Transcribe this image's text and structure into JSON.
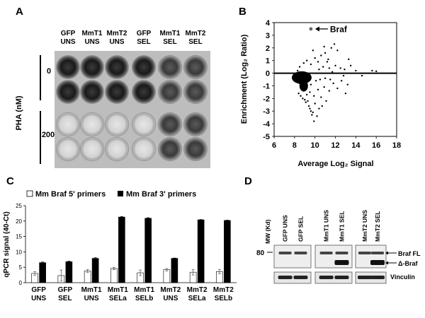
{
  "panels": {
    "A": {
      "letter": "A",
      "columns": [
        {
          "line1": "GFP",
          "line2": "UNS"
        },
        {
          "line1": "MmT1",
          "line2": "UNS"
        },
        {
          "line1": "MmT2",
          "line2": "UNS"
        },
        {
          "line1": "GFP",
          "line2": "SEL"
        },
        {
          "line1": "MmT1",
          "line2": "SEL"
        },
        {
          "line1": "MmT2",
          "line2": "SEL"
        }
      ],
      "row_axis_label": "PHA (nM)",
      "row_groups": [
        "0",
        "200"
      ]
    },
    "B": {
      "letter": "B",
      "annotation": "Braf"
    },
    "C": {
      "letter": "C",
      "legend": [
        "Mm Braf 5' primers",
        "Mm Braf 3' primers"
      ]
    },
    "D": {
      "letter": "D",
      "mw_label": "MW (Kd)",
      "mw_marker": "80",
      "lane_groups": [
        [
          "GFP UNS",
          "GFP SEL"
        ],
        [
          "MmT1 UNS",
          "MmT1 SEL"
        ],
        [
          "MmT2 UNS",
          "MmT2 SEL"
        ]
      ],
      "band_labels": [
        "Braf FL",
        "Δ-Braf"
      ],
      "loading_label": "Vinculin"
    }
  },
  "chart_data": [
    {
      "type": "scatter",
      "xlabel": "Average Log₂ Signal",
      "ylabel": "Enrichment (Log₂ Ratio)",
      "xlim": [
        6,
        18
      ],
      "ylim": [
        -5,
        4
      ],
      "xticks": [
        6,
        8,
        10,
        12,
        14,
        16,
        18
      ],
      "yticks": [
        -5,
        -4,
        -3,
        -2,
        -1,
        0,
        1,
        2,
        3,
        4
      ],
      "highlight": {
        "label": "Braf",
        "x": 9.6,
        "y": 3.5
      },
      "points": [
        [
          8.4,
          -1.6
        ],
        [
          8.6,
          -1.8
        ],
        [
          8.8,
          -2.0
        ],
        [
          9.0,
          -2.1
        ],
        [
          9.1,
          -2.3
        ],
        [
          9.3,
          -2.2
        ],
        [
          9.4,
          -2.6
        ],
        [
          9.5,
          -2.8
        ],
        [
          9.6,
          -3.0
        ],
        [
          9.7,
          -3.3
        ],
        [
          9.8,
          -3.1
        ],
        [
          9.9,
          -3.8
        ],
        [
          10.2,
          -3.4
        ],
        [
          10.4,
          -2.8
        ],
        [
          10.7,
          -2.6
        ],
        [
          10.0,
          -2.4
        ],
        [
          9.2,
          -1.7
        ],
        [
          8.9,
          -1.4
        ],
        [
          8.7,
          -1.2
        ],
        [
          9.0,
          -1.0
        ],
        [
          9.5,
          -1.5
        ],
        [
          9.9,
          -1.8
        ],
        [
          10.3,
          -1.3
        ],
        [
          10.6,
          -1.9
        ],
        [
          10.9,
          -1.1
        ],
        [
          11.1,
          -2.2
        ],
        [
          11.4,
          -1.4
        ],
        [
          11.8,
          -0.8
        ],
        [
          12.2,
          -1.2
        ],
        [
          12.6,
          -0.6
        ],
        [
          13.2,
          -0.9
        ],
        [
          13.0,
          -1.6
        ],
        [
          8.5,
          -0.8
        ],
        [
          8.8,
          -0.6
        ],
        [
          9.2,
          -0.7
        ],
        [
          9.6,
          -0.9
        ],
        [
          10.1,
          -0.6
        ],
        [
          10.5,
          -0.5
        ],
        [
          11.0,
          -0.4
        ],
        [
          11.5,
          -0.5
        ],
        [
          8.5,
          0.5
        ],
        [
          8.9,
          0.8
        ],
        [
          9.2,
          1.0
        ],
        [
          9.6,
          0.7
        ],
        [
          10.0,
          1.2
        ],
        [
          10.3,
          0.9
        ],
        [
          10.6,
          1.4
        ],
        [
          11.0,
          1.6
        ],
        [
          11.3,
          1.1
        ],
        [
          11.6,
          2.0
        ],
        [
          11.9,
          2.3
        ],
        [
          12.2,
          1.8
        ],
        [
          12.0,
          0.6
        ],
        [
          11.4,
          0.4
        ],
        [
          10.8,
          0.5
        ],
        [
          12.5,
          0.4
        ],
        [
          12.9,
          0.3
        ],
        [
          13.5,
          0.6
        ],
        [
          14.0,
          0.2
        ],
        [
          15.6,
          0.2
        ],
        [
          16.0,
          0.15
        ],
        [
          8.3,
          0.2
        ],
        [
          10.4,
          0.3
        ],
        [
          11.7,
          0.1
        ],
        [
          12.8,
          -0.2
        ],
        [
          14.6,
          -0.2
        ],
        [
          9.8,
          1.8
        ],
        [
          10.9,
          2.1
        ],
        [
          11.2,
          0.9
        ],
        [
          13.3,
          1.1
        ]
      ]
    },
    {
      "type": "bar",
      "categories": [
        "GFP UNS",
        "GFP SEL",
        "MmT1 UNS",
        "MmT1 SELa",
        "MmT1 SELb",
        "MmT2 UNS",
        "MmT2 SELa",
        "MmT2 SELb"
      ],
      "ylabel": "qPCR signal (40-Ct)",
      "ylim": [
        0,
        25
      ],
      "yticks": [
        0,
        5,
        10,
        15,
        20,
        25
      ],
      "series": [
        {
          "name": "Mm Braf 5' primers",
          "values": [
            3.0,
            2.3,
            3.8,
            4.6,
            3.2,
            4.2,
            3.4,
            3.6
          ],
          "errors": [
            0.6,
            1.8,
            0.5,
            0.4,
            0.9,
            0.4,
            0.9,
            0.7
          ],
          "color": "#ffffff"
        },
        {
          "name": "Mm Braf 3' primers",
          "values": [
            6.5,
            6.8,
            7.9,
            21.3,
            20.9,
            7.9,
            20.4,
            20.2
          ],
          "errors": [
            0.2,
            0.2,
            0.2,
            0.2,
            0.2,
            0.1,
            0.1,
            0.1
          ],
          "color": "#000000"
        }
      ]
    }
  ]
}
